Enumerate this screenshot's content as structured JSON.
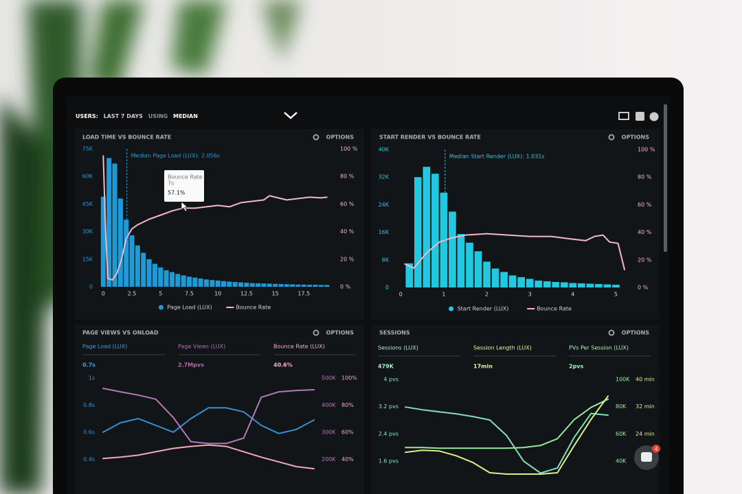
{
  "header": {
    "title_parts": [
      "USERS:",
      "LAST 7 DAYS",
      "USING",
      "MEDIAN"
    ]
  },
  "chat_badge": "4",
  "chart_data": [
    {
      "type": "combo",
      "title": "LOAD TIME VS BOUNCE RATE",
      "options": "OPTIONS",
      "xlim": [
        -0.2,
        20
      ],
      "xticks": [
        0,
        2.5,
        5,
        7.5,
        10,
        12.5,
        15,
        17.5
      ],
      "ylim": [
        0,
        75000
      ],
      "yticks": [
        0,
        {
          "value": 15000,
          "label": "15K"
        },
        {
          "value": 30000,
          "label": "30K"
        },
        {
          "value": 45000,
          "label": "45K"
        },
        {
          "value": 60000,
          "label": "60K"
        },
        {
          "value": 75000,
          "label": "75K"
        }
      ],
      "y2lim": [
        0,
        100
      ],
      "y2ticks": [
        {
          "value": 0,
          "label": "0 %"
        },
        {
          "value": 20,
          "label": "20 %"
        },
        {
          "value": 40,
          "label": "40 %"
        },
        {
          "value": 60,
          "label": "60 %"
        },
        {
          "value": 80,
          "label": "80 %"
        },
        {
          "value": 100,
          "label": "100 %"
        }
      ],
      "median": {
        "label": "Median Page Load (LUX): 2.056s",
        "value": 2.056
      },
      "tooltip": {
        "title": "Bounce Rate",
        "x_label": "7s",
        "label": "57.1%"
      },
      "series": [
        {
          "name": "Page Load (LUX)",
          "type": "bar",
          "color": "#1e9ad6",
          "x": [
            0,
            0.5,
            1,
            1.5,
            2,
            2.5,
            3,
            3.5,
            4,
            4.5,
            5,
            5.5,
            6,
            6.5,
            7,
            7.5,
            8,
            8.5,
            9,
            9.5,
            10,
            10.5,
            11,
            11.5,
            12,
            12.5,
            13,
            13.5,
            14,
            14.5,
            15,
            15.5,
            16,
            16.5,
            17,
            17.5,
            18,
            18.5,
            19,
            19.5
          ],
          "values": [
            49000,
            70000,
            67000,
            48000,
            36500,
            28000,
            22500,
            18500,
            15000,
            12500,
            10500,
            9000,
            8000,
            7000,
            6200,
            5500,
            5000,
            4500,
            4000,
            3700,
            3400,
            3100,
            2800,
            2600,
            2400,
            2200,
            2000,
            1900,
            1800,
            1700,
            1600,
            1500,
            1400,
            1300,
            1200,
            1200,
            1100,
            1100,
            1000,
            1000
          ]
        },
        {
          "name": "Bounce Rate",
          "type": "line",
          "axis": "y2",
          "color": "#f4b8c8",
          "x": [
            0,
            0.2,
            0.4,
            0.8,
            1.2,
            1.6,
            2,
            2.5,
            3,
            4,
            5,
            6,
            7,
            8,
            9,
            10,
            11,
            12,
            13,
            14,
            14.5,
            15,
            16,
            17,
            18,
            19,
            19.5
          ],
          "values": [
            95,
            40,
            6,
            5,
            10,
            20,
            35,
            42,
            45,
            49,
            52,
            55,
            57.1,
            57,
            58,
            59,
            58,
            61,
            62,
            63,
            66,
            65,
            63,
            64,
            65,
            64.5,
            65
          ]
        }
      ]
    },
    {
      "type": "combo",
      "title": "START RENDER VS BOUNCE RATE",
      "options": "OPTIONS",
      "xlim": [
        -0.1,
        5.2
      ],
      "xticks": [
        0,
        1,
        2,
        3,
        4,
        5
      ],
      "ylim": [
        0,
        40000
      ],
      "yticks": [
        0,
        {
          "value": 8000,
          "label": "8K"
        },
        {
          "value": 16000,
          "label": "16K"
        },
        {
          "value": 24000,
          "label": "24K"
        },
        {
          "value": 32000,
          "label": "32K"
        },
        {
          "value": 40000,
          "label": "40K"
        }
      ],
      "y2lim": [
        0,
        100
      ],
      "y2ticks": [
        {
          "value": 0,
          "label": "0 %"
        },
        {
          "value": 20,
          "label": "20 %"
        },
        {
          "value": 40,
          "label": "40 %"
        },
        {
          "value": 60,
          "label": "60 %"
        },
        {
          "value": 80,
          "label": "80 %"
        },
        {
          "value": 100,
          "label": "100 %"
        }
      ],
      "median": {
        "label": "Median Start Render (LUX): 1.031s",
        "value": 1.031
      },
      "series": [
        {
          "name": "Start Render (LUX)",
          "type": "bar",
          "color": "#22c8e0",
          "x": [
            0.2,
            0.4,
            0.6,
            0.8,
            1,
            1.2,
            1.4,
            1.6,
            1.8,
            2,
            2.2,
            2.4,
            2.6,
            2.8,
            3,
            3.2,
            3.4,
            3.6,
            3.8,
            4,
            4.2,
            4.4,
            4.6,
            4.8,
            5
          ],
          "values": [
            7000,
            32000,
            35000,
            33000,
            27500,
            22000,
            15500,
            13000,
            10500,
            7500,
            5500,
            4500,
            3500,
            3000,
            2500,
            2000,
            1800,
            1600,
            1500,
            1300,
            1200,
            1100,
            1000,
            900,
            800
          ]
        },
        {
          "name": "Bounce Rate",
          "type": "line",
          "axis": "y2",
          "color": "#f4b8c8",
          "x": [
            0.1,
            0.3,
            0.6,
            0.9,
            1.2,
            1.5,
            2,
            2.5,
            3,
            3.5,
            4,
            4.3,
            4.5,
            4.7,
            4.85,
            5.05,
            5.2
          ],
          "values": [
            17,
            14,
            25,
            33,
            36,
            38,
            39,
            38,
            37,
            37,
            35,
            34,
            37,
            38,
            33,
            32,
            13
          ]
        }
      ]
    },
    {
      "type": "line",
      "title": "PAGE VIEWS VS ONLOAD",
      "options": "OPTIONS",
      "metrics": [
        {
          "name": "Page Load (LUX)",
          "value": "0.7s",
          "color": "#3a9ee0"
        },
        {
          "name": "Page Views (LUX)",
          "value": "2.7Mpvs",
          "color": "#b070b0"
        },
        {
          "name": "Bounce Rate (LUX)",
          "value": "40.6%",
          "color": "#f6b0c8"
        }
      ],
      "categories": [
        null,
        null,
        null,
        null,
        null,
        null,
        null,
        null,
        null,
        null,
        null,
        null,
        null
      ],
      "ylim": [
        0.3,
        1
      ],
      "yticks": [
        {
          "value": 0.4,
          "label": "0.4s"
        },
        {
          "value": 0.6,
          "label": "0.6s"
        },
        {
          "value": 0.8,
          "label": "0.8s"
        },
        {
          "value": 1,
          "label": "1s"
        }
      ],
      "y2lim": [
        150000,
        500000
      ],
      "y2ticks": [
        {
          "value": 200000,
          "label": "200K"
        },
        {
          "value": 300000,
          "label": "300K"
        },
        {
          "value": 400000,
          "label": "400K"
        },
        {
          "value": 500000,
          "label": "500K"
        }
      ],
      "y3lim": [
        30,
        100
      ],
      "y3ticks": [
        {
          "value": 40,
          "label": "40%"
        },
        {
          "value": 60,
          "label": "60%"
        },
        {
          "value": 80,
          "label": "80%"
        },
        {
          "value": 100,
          "label": "100%"
        }
      ],
      "series": [
        {
          "color": "#3a8fd0",
          "values": [
            0.6,
            0.67,
            0.7,
            0.65,
            0.6,
            0.7,
            0.78,
            0.78,
            0.75,
            0.65,
            0.59,
            0.62,
            0.69
          ]
        },
        {
          "color": "#b678b8",
          "axis": "y2",
          "values": [
            462000,
            449000,
            437000,
            422000,
            354000,
            265000,
            258000,
            258000,
            278000,
            429000,
            449000,
            454000,
            457000
          ]
        },
        {
          "color": "#f4a8c0",
          "axis": "y3",
          "values": [
            40.5,
            41.5,
            43,
            45.5,
            48,
            49.5,
            50.5,
            49.5,
            45.5,
            41.5,
            38,
            34.5,
            33
          ]
        }
      ]
    },
    {
      "type": "line",
      "title": "SESSIONS",
      "options": "OPTIONS",
      "metrics": [
        {
          "name": "Sessions (LUX)",
          "value": "479K",
          "color": "#a8f0c8"
        },
        {
          "name": "Session Length (LUX)",
          "value": "17min",
          "color": "#e6f29a"
        },
        {
          "name": "PVs Per Session (LUX)",
          "value": "2pvs",
          "color": "#a8f0b8"
        }
      ],
      "categories": [
        null,
        null,
        null,
        null,
        null,
        null,
        null,
        null,
        null,
        null,
        null,
        null,
        null
      ],
      "ylim": [
        1.2,
        4
      ],
      "yticks": [
        {
          "value": 1.6,
          "label": "1.6 pvs"
        },
        {
          "value": 2.4,
          "label": "2.4 pvs"
        },
        {
          "value": 3.2,
          "label": "3.2 pvs"
        },
        {
          "value": 4,
          "label": "4 pvs"
        }
      ],
      "y2lim": [
        30000,
        100000
      ],
      "y2ticks": [
        {
          "value": 40000,
          "label": "40K"
        },
        {
          "value": 60000,
          "label": "60K"
        },
        {
          "value": 80000,
          "label": "80K"
        },
        {
          "value": 100000,
          "label": "100K"
        }
      ],
      "y3lim": [
        12,
        40
      ],
      "y3ticks": [
        {
          "value": 24,
          "label": "24 min"
        },
        {
          "value": 32,
          "label": "32 min"
        },
        {
          "value": 40,
          "label": "40 min"
        }
      ],
      "series": [
        {
          "color": "#80e0b8",
          "values": [
            3.19,
            3.11,
            3.05,
            2.99,
            2.91,
            2.81,
            2.35,
            1.6,
            1.25,
            1.4,
            2.3,
            3.0,
            2.95
          ]
        },
        {
          "color": "#98e8a0",
          "axis": "y2",
          "values": [
            50000,
            50000,
            49500,
            49500,
            49500,
            49500,
            49500,
            50000,
            51500,
            56500,
            70500,
            79500,
            85500
          ]
        },
        {
          "color": "#dcef8a",
          "axis": "y3",
          "values": [
            18.6,
            19.2,
            19,
            17.6,
            15.6,
            12.6,
            12.2,
            12.2,
            12.2,
            12.6,
            20.6,
            28.3,
            35.1
          ]
        }
      ]
    }
  ]
}
